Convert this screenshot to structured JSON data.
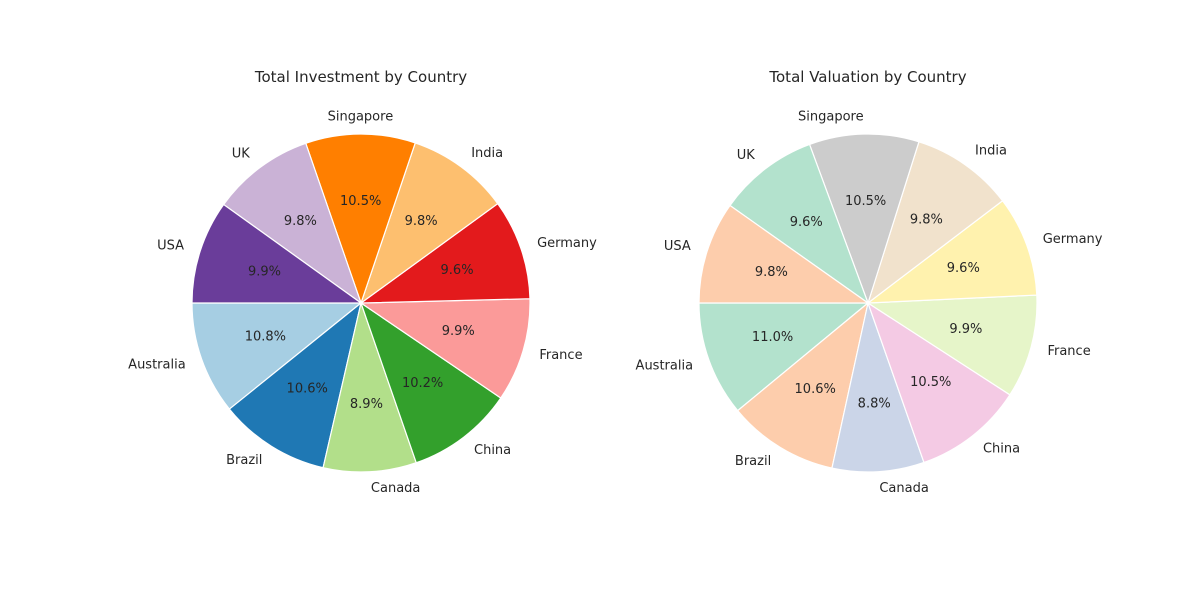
{
  "chart_data": [
    {
      "type": "pie",
      "title": "Total Investment by Country",
      "labels": [
        "Australia",
        "Brazil",
        "Canada",
        "China",
        "France",
        "Germany",
        "India",
        "Singapore",
        "UK",
        "USA"
      ],
      "values": [
        10.8,
        10.6,
        8.9,
        10.2,
        9.9,
        9.6,
        9.8,
        10.5,
        9.8,
        9.9
      ],
      "value_labels": [
        "10.8%",
        "10.6%",
        "8.9%",
        "10.2%",
        "9.9%",
        "9.6%",
        "9.8%",
        "10.5%",
        "9.8%",
        "9.9%"
      ],
      "colors": [
        "#a6cee3",
        "#1f78b4",
        "#b2df8a",
        "#33a02c",
        "#fb9a99",
        "#e31a1c",
        "#fdbf6f",
        "#ff7f00",
        "#cab2d6",
        "#6a3d9a"
      ]
    },
    {
      "type": "pie",
      "title": "Total Valuation by Country",
      "labels": [
        "Australia",
        "Brazil",
        "Canada",
        "China",
        "France",
        "Germany",
        "India",
        "Singapore",
        "UK",
        "USA"
      ],
      "values": [
        11.0,
        10.6,
        8.8,
        10.5,
        9.9,
        9.6,
        9.8,
        10.5,
        9.6,
        9.8
      ],
      "value_labels": [
        "11.0%",
        "10.6%",
        "8.8%",
        "10.5%",
        "9.9%",
        "9.6%",
        "9.8%",
        "10.5%",
        "9.6%",
        "9.8%"
      ],
      "colors": [
        "#b3e2cd",
        "#fdcdac",
        "#cbd5e8",
        "#f4cae4",
        "#e6f5c9",
        "#fff2ae",
        "#f1e2cc",
        "#cccccc",
        "#b3e2cd",
        "#fdcdac"
      ]
    }
  ]
}
